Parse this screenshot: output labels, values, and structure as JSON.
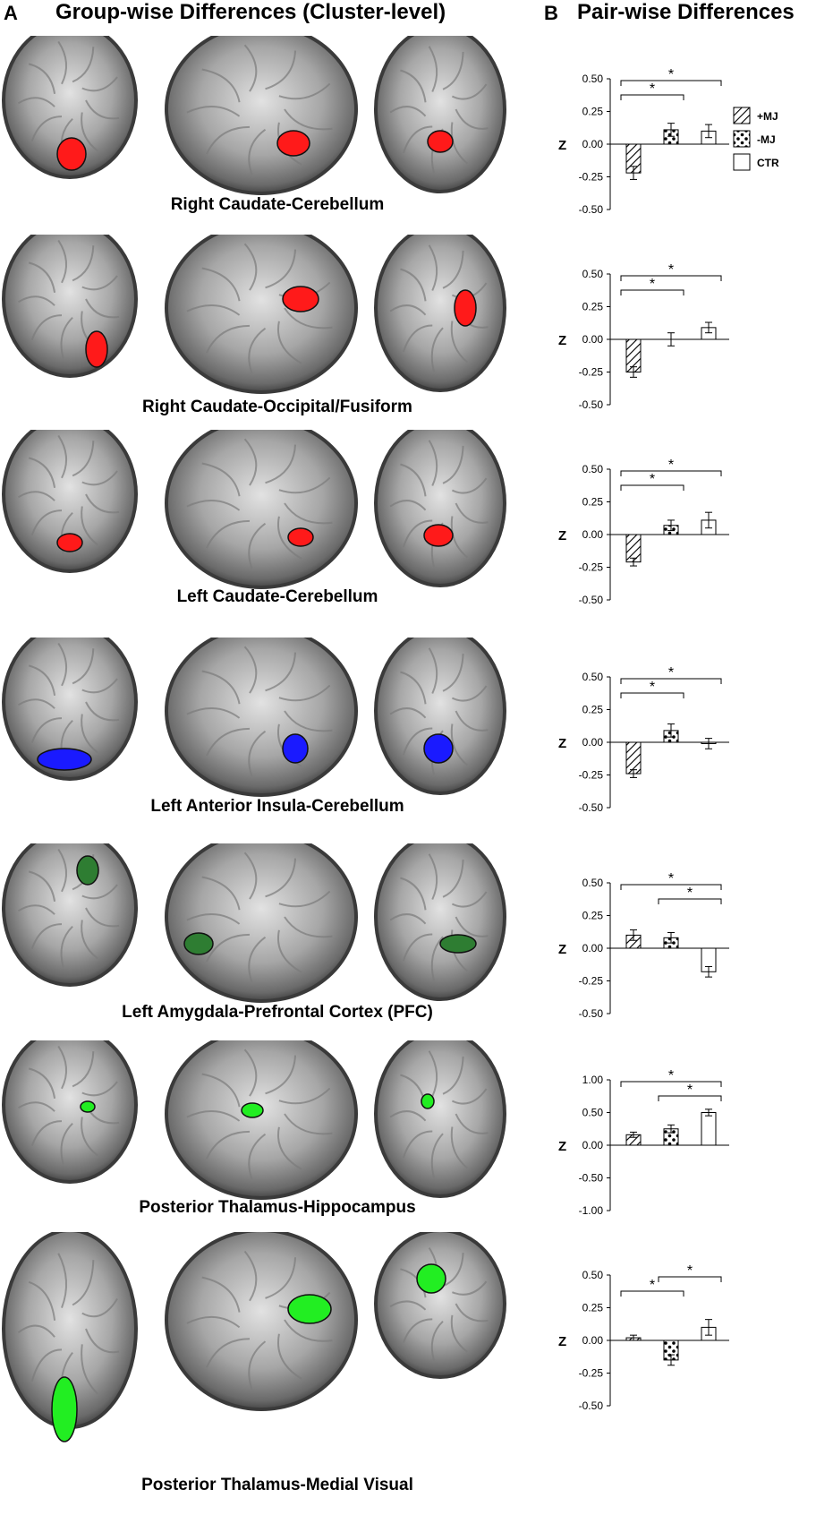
{
  "header": {
    "panel_a": "A",
    "panel_a_title": "Group-wise Differences (Cluster-level)",
    "panel_b": "B",
    "panel_b_title": "Pair-wise Differences"
  },
  "legend": {
    "items": [
      {
        "label": "+MJ",
        "pattern": "hatch"
      },
      {
        "label": "-MJ",
        "pattern": "dots"
      },
      {
        "label": "CTR",
        "pattern": "plain"
      }
    ]
  },
  "rows": [
    {
      "label": "Right Caudate-Cerebellum",
      "cluster_color": "#ff1a1a"
    },
    {
      "label": "Right Caudate-Occipital/Fusiform",
      "cluster_color": "#ff1a1a"
    },
    {
      "label": "Left Caudate-Cerebellum",
      "cluster_color": "#ff1a1a"
    },
    {
      "label": "Left Anterior Insula-Cerebellum",
      "cluster_color": "#1a1aff"
    },
    {
      "label": "Left Amygdala-Prefrontal Cortex (PFC)",
      "cluster_color": "#2e7d32"
    },
    {
      "label": "Posterior Thalamus-Hippocampus",
      "cluster_color": "#22ee22"
    },
    {
      "label": "Posterior Thalamus-Medial Visual",
      "cluster_color": "#22ee22"
    }
  ],
  "chart_data": [
    {
      "type": "bar",
      "ylabel": "Z",
      "categories": [
        "+MJ",
        "-MJ",
        "CTR"
      ],
      "values": [
        -0.22,
        0.11,
        0.1
      ],
      "errors": [
        0.05,
        0.05,
        0.05
      ],
      "ylim": [
        -0.5,
        0.5
      ],
      "yticks": [
        "0.50",
        "0.25",
        "0.00",
        "-0.25",
        "-0.50"
      ],
      "brackets": [
        {
          "from": 0,
          "to": 1,
          "label": "*"
        },
        {
          "from": 0,
          "to": 2,
          "label": "*"
        }
      ]
    },
    {
      "type": "bar",
      "ylabel": "Z",
      "categories": [
        "+MJ",
        "-MJ",
        "CTR"
      ],
      "values": [
        -0.25,
        0.0,
        0.09
      ],
      "errors": [
        0.04,
        0.05,
        0.04
      ],
      "ylim": [
        -0.5,
        0.5
      ],
      "yticks": [
        "0.50",
        "0.25",
        "0.00",
        "-0.25",
        "-0.50"
      ],
      "brackets": [
        {
          "from": 0,
          "to": 1,
          "label": "*"
        },
        {
          "from": 0,
          "to": 2,
          "label": "*"
        }
      ]
    },
    {
      "type": "bar",
      "ylabel": "Z",
      "categories": [
        "+MJ",
        "-MJ",
        "CTR"
      ],
      "values": [
        -0.21,
        0.07,
        0.11
      ],
      "errors": [
        0.03,
        0.04,
        0.06
      ],
      "ylim": [
        -0.5,
        0.5
      ],
      "yticks": [
        "0.50",
        "0.25",
        "0.00",
        "-0.25",
        "-0.50"
      ],
      "brackets": [
        {
          "from": 0,
          "to": 1,
          "label": "*"
        },
        {
          "from": 0,
          "to": 2,
          "label": "*"
        }
      ]
    },
    {
      "type": "bar",
      "ylabel": "Z",
      "categories": [
        "+MJ",
        "-MJ",
        "CTR"
      ],
      "values": [
        -0.24,
        0.09,
        -0.01
      ],
      "errors": [
        0.03,
        0.05,
        0.04
      ],
      "ylim": [
        -0.5,
        0.5
      ],
      "yticks": [
        "0.50",
        "0.25",
        "0.00",
        "-0.25",
        "-0.50"
      ],
      "brackets": [
        {
          "from": 0,
          "to": 1,
          "label": "*"
        },
        {
          "from": 0,
          "to": 2,
          "label": "*"
        }
      ]
    },
    {
      "type": "bar",
      "ylabel": "Z",
      "categories": [
        "+MJ",
        "-MJ",
        "CTR"
      ],
      "values": [
        0.1,
        0.08,
        -0.18
      ],
      "errors": [
        0.04,
        0.04,
        0.04
      ],
      "ylim": [
        -0.5,
        0.5
      ],
      "yticks": [
        "0.50",
        "0.25",
        "0.00",
        "-0.25",
        "-0.50"
      ],
      "brackets": [
        {
          "from": 0,
          "to": 2,
          "label": "*"
        },
        {
          "from": 1,
          "to": 2,
          "label": "*"
        }
      ]
    },
    {
      "type": "bar",
      "ylabel": "Z",
      "categories": [
        "+MJ",
        "-MJ",
        "CTR"
      ],
      "values": [
        0.16,
        0.25,
        0.5
      ],
      "errors": [
        0.04,
        0.06,
        0.05
      ],
      "ylim": [
        -1.0,
        1.0
      ],
      "yticks": [
        "1.00",
        "0.50",
        "0.00",
        "-0.50",
        "-1.00"
      ],
      "brackets": [
        {
          "from": 0,
          "to": 2,
          "label": "*"
        },
        {
          "from": 1,
          "to": 2,
          "label": "*"
        }
      ]
    },
    {
      "type": "bar",
      "ylabel": "Z",
      "categories": [
        "+MJ",
        "-MJ",
        "CTR"
      ],
      "values": [
        0.02,
        -0.15,
        0.1
      ],
      "errors": [
        0.02,
        0.04,
        0.06
      ],
      "ylim": [
        -0.5,
        0.5
      ],
      "yticks": [
        "0.50",
        "0.25",
        "0.00",
        "-0.25",
        "-0.50"
      ],
      "brackets": [
        {
          "from": 0,
          "to": 1,
          "label": "*"
        },
        {
          "from": 1,
          "to": 2,
          "label": "*"
        }
      ]
    }
  ]
}
